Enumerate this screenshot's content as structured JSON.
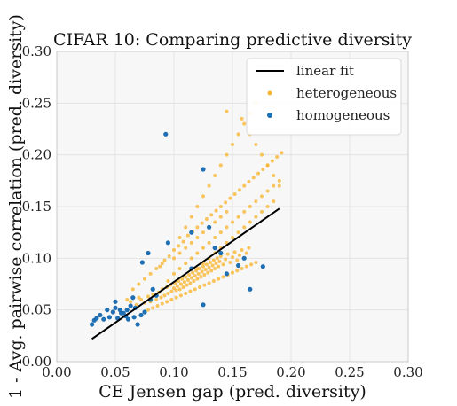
{
  "chart_data": {
    "type": "scatter",
    "title": "CIFAR 10: Comparing predictive diversity",
    "xlabel": "CE Jensen gap (pred. diversity)",
    "ylabel": "1 - Avg. pairwise correlation (pred. diversity)",
    "xlim": [
      0.0,
      0.3
    ],
    "ylim": [
      0.0,
      0.3
    ],
    "xticks": [
      0.0,
      0.05,
      0.1,
      0.15,
      0.2,
      0.25,
      0.3
    ],
    "yticks": [
      0.0,
      0.05,
      0.1,
      0.15,
      0.2,
      0.25,
      0.3
    ],
    "xtick_labels": [
      "0.00",
      "0.05",
      "0.10",
      "0.15",
      "0.20",
      "0.25",
      "0.30"
    ],
    "ytick_labels": [
      "0.00",
      "0.05",
      "0.10",
      "0.15",
      "0.20",
      "0.25",
      "0.30"
    ],
    "grid": true,
    "legend_position": "top-right",
    "legend": [
      "linear fit",
      "heterogeneous",
      "homogeneous"
    ],
    "colors": {
      "background": "#f7f7f7",
      "grid": "#e4e4e4",
      "linear_fit": "#000000",
      "heterogeneous": "#f7b733",
      "homogeneous": "#1f6fb2"
    },
    "linear_fit": {
      "name": "linear fit",
      "x": [
        0.03,
        0.19
      ],
      "y": [
        0.022,
        0.148
      ]
    },
    "heterogeneous": {
      "name": "heterogeneous",
      "points": [
        [
          0.063,
          0.058
        ],
        [
          0.068,
          0.055
        ],
        [
          0.07,
          0.062
        ],
        [
          0.072,
          0.06
        ],
        [
          0.075,
          0.057
        ],
        [
          0.078,
          0.063
        ],
        [
          0.08,
          0.058
        ],
        [
          0.082,
          0.065
        ],
        [
          0.085,
          0.06
        ],
        [
          0.087,
          0.067
        ],
        [
          0.089,
          0.062
        ],
        [
          0.09,
          0.07
        ],
        [
          0.092,
          0.064
        ],
        [
          0.094,
          0.072
        ],
        [
          0.095,
          0.066
        ],
        [
          0.097,
          0.074
        ],
        [
          0.098,
          0.068
        ],
        [
          0.1,
          0.071
        ],
        [
          0.101,
          0.076
        ],
        [
          0.102,
          0.069
        ],
        [
          0.103,
          0.073
        ],
        [
          0.104,
          0.078
        ],
        [
          0.105,
          0.07
        ],
        [
          0.106,
          0.075
        ],
        [
          0.107,
          0.08
        ],
        [
          0.108,
          0.072
        ],
        [
          0.109,
          0.077
        ],
        [
          0.11,
          0.082
        ],
        [
          0.111,
          0.074
        ],
        [
          0.112,
          0.079
        ],
        [
          0.113,
          0.084
        ],
        [
          0.114,
          0.076
        ],
        [
          0.115,
          0.081
        ],
        [
          0.116,
          0.086
        ],
        [
          0.117,
          0.078
        ],
        [
          0.118,
          0.083
        ],
        [
          0.119,
          0.088
        ],
        [
          0.12,
          0.08
        ],
        [
          0.121,
          0.085
        ],
        [
          0.122,
          0.09
        ],
        [
          0.123,
          0.082
        ],
        [
          0.124,
          0.087
        ],
        [
          0.125,
          0.092
        ],
        [
          0.126,
          0.084
        ],
        [
          0.127,
          0.089
        ],
        [
          0.128,
          0.094
        ],
        [
          0.129,
          0.086
        ],
        [
          0.13,
          0.091
        ],
        [
          0.131,
          0.096
        ],
        [
          0.132,
          0.088
        ],
        [
          0.133,
          0.093
        ],
        [
          0.134,
          0.098
        ],
        [
          0.135,
          0.09
        ],
        [
          0.136,
          0.095
        ],
        [
          0.137,
          0.1
        ],
        [
          0.138,
          0.092
        ],
        [
          0.139,
          0.097
        ],
        [
          0.14,
          0.102
        ],
        [
          0.142,
          0.094
        ],
        [
          0.144,
          0.099
        ],
        [
          0.146,
          0.104
        ],
        [
          0.148,
          0.096
        ],
        [
          0.15,
          0.101
        ],
        [
          0.152,
          0.106
        ],
        [
          0.154,
          0.098
        ],
        [
          0.156,
          0.103
        ],
        [
          0.158,
          0.108
        ],
        [
          0.16,
          0.1
        ],
        [
          0.162,
          0.105
        ],
        [
          0.164,
          0.11
        ],
        [
          0.095,
          0.078
        ],
        [
          0.1,
          0.085
        ],
        [
          0.105,
          0.09
        ],
        [
          0.11,
          0.095
        ],
        [
          0.115,
          0.1
        ],
        [
          0.12,
          0.105
        ],
        [
          0.125,
          0.11
        ],
        [
          0.13,
          0.115
        ],
        [
          0.135,
          0.12
        ],
        [
          0.14,
          0.125
        ],
        [
          0.145,
          0.13
        ],
        [
          0.15,
          0.135
        ],
        [
          0.155,
          0.14
        ],
        [
          0.16,
          0.145
        ],
        [
          0.165,
          0.15
        ],
        [
          0.17,
          0.155
        ],
        [
          0.175,
          0.16
        ],
        [
          0.18,
          0.165
        ],
        [
          0.185,
          0.17
        ],
        [
          0.19,
          0.175
        ],
        [
          0.1,
          0.1
        ],
        [
          0.105,
          0.105
        ],
        [
          0.11,
          0.11
        ],
        [
          0.115,
          0.115
        ],
        [
          0.12,
          0.12
        ],
        [
          0.125,
          0.125
        ],
        [
          0.13,
          0.13
        ],
        [
          0.135,
          0.135
        ],
        [
          0.14,
          0.14
        ],
        [
          0.145,
          0.145
        ],
        [
          0.088,
          0.092
        ],
        [
          0.092,
          0.098
        ],
        [
          0.096,
          0.102
        ],
        [
          0.1,
          0.108
        ],
        [
          0.104,
          0.112
        ],
        [
          0.108,
          0.116
        ],
        [
          0.112,
          0.122
        ],
        [
          0.116,
          0.126
        ],
        [
          0.12,
          0.13
        ],
        [
          0.124,
          0.134
        ],
        [
          0.128,
          0.138
        ],
        [
          0.132,
          0.142
        ],
        [
          0.136,
          0.146
        ],
        [
          0.14,
          0.15
        ],
        [
          0.144,
          0.154
        ],
        [
          0.148,
          0.158
        ],
        [
          0.152,
          0.162
        ],
        [
          0.156,
          0.166
        ],
        [
          0.16,
          0.17
        ],
        [
          0.164,
          0.174
        ],
        [
          0.168,
          0.178
        ],
        [
          0.172,
          0.182
        ],
        [
          0.176,
          0.186
        ],
        [
          0.18,
          0.19
        ],
        [
          0.184,
          0.194
        ],
        [
          0.188,
          0.198
        ],
        [
          0.192,
          0.202
        ],
        [
          0.078,
          0.05
        ],
        [
          0.082,
          0.052
        ],
        [
          0.086,
          0.054
        ],
        [
          0.09,
          0.056
        ],
        [
          0.094,
          0.058
        ],
        [
          0.098,
          0.06
        ],
        [
          0.102,
          0.062
        ],
        [
          0.106,
          0.064
        ],
        [
          0.11,
          0.066
        ],
        [
          0.114,
          0.068
        ],
        [
          0.118,
          0.07
        ],
        [
          0.122,
          0.072
        ],
        [
          0.126,
          0.074
        ],
        [
          0.13,
          0.076
        ],
        [
          0.134,
          0.078
        ],
        [
          0.138,
          0.08
        ],
        [
          0.142,
          0.082
        ],
        [
          0.146,
          0.084
        ],
        [
          0.15,
          0.086
        ],
        [
          0.154,
          0.088
        ],
        [
          0.158,
          0.09
        ],
        [
          0.162,
          0.092
        ],
        [
          0.166,
          0.094
        ],
        [
          0.17,
          0.096
        ],
        [
          0.105,
          0.12
        ],
        [
          0.11,
          0.13
        ],
        [
          0.115,
          0.14
        ],
        [
          0.12,
          0.15
        ],
        [
          0.125,
          0.16
        ],
        [
          0.13,
          0.17
        ],
        [
          0.135,
          0.18
        ],
        [
          0.14,
          0.19
        ],
        [
          0.145,
          0.2
        ],
        [
          0.15,
          0.21
        ],
        [
          0.155,
          0.22
        ],
        [
          0.16,
          0.23
        ],
        [
          0.165,
          0.24
        ],
        [
          0.17,
          0.25
        ],
        [
          0.145,
          0.242
        ],
        [
          0.158,
          0.235
        ],
        [
          0.165,
          0.22
        ],
        [
          0.17,
          0.21
        ],
        [
          0.175,
          0.2
        ],
        [
          0.18,
          0.19
        ],
        [
          0.185,
          0.18
        ],
        [
          0.19,
          0.17
        ],
        [
          0.06,
          0.06
        ],
        [
          0.065,
          0.07
        ],
        [
          0.07,
          0.075
        ],
        [
          0.075,
          0.08
        ],
        [
          0.08,
          0.085
        ],
        [
          0.085,
          0.09
        ],
        [
          0.09,
          0.095
        ],
        [
          0.12,
          0.09
        ],
        [
          0.125,
          0.095
        ],
        [
          0.13,
          0.1
        ],
        [
          0.135,
          0.105
        ],
        [
          0.14,
          0.11
        ],
        [
          0.145,
          0.115
        ],
        [
          0.15,
          0.12
        ],
        [
          0.155,
          0.125
        ],
        [
          0.16,
          0.13
        ],
        [
          0.165,
          0.135
        ],
        [
          0.17,
          0.14
        ],
        [
          0.175,
          0.145
        ],
        [
          0.18,
          0.15
        ],
        [
          0.185,
          0.155
        ]
      ]
    },
    "homogeneous": {
      "name": "homogeneous",
      "points": [
        [
          0.03,
          0.036
        ],
        [
          0.032,
          0.04
        ],
        [
          0.034,
          0.042
        ],
        [
          0.037,
          0.045
        ],
        [
          0.04,
          0.041
        ],
        [
          0.043,
          0.05
        ],
        [
          0.045,
          0.043
        ],
        [
          0.048,
          0.048
        ],
        [
          0.05,
          0.052
        ],
        [
          0.052,
          0.042
        ],
        [
          0.054,
          0.05
        ],
        [
          0.057,
          0.047
        ],
        [
          0.059,
          0.044
        ],
        [
          0.061,
          0.041
        ],
        [
          0.063,
          0.054
        ],
        [
          0.065,
          0.062
        ],
        [
          0.067,
          0.052
        ],
        [
          0.069,
          0.036
        ],
        [
          0.072,
          0.045
        ],
        [
          0.075,
          0.048
        ],
        [
          0.085,
          0.064
        ],
        [
          0.08,
          0.06
        ],
        [
          0.082,
          0.07
        ],
        [
          0.093,
          0.22
        ],
        [
          0.073,
          0.096
        ],
        [
          0.078,
          0.105
        ],
        [
          0.095,
          0.115
        ],
        [
          0.115,
          0.125
        ],
        [
          0.125,
          0.186
        ],
        [
          0.13,
          0.13
        ],
        [
          0.135,
          0.11
        ],
        [
          0.14,
          0.105
        ],
        [
          0.145,
          0.085
        ],
        [
          0.155,
          0.093
        ],
        [
          0.16,
          0.1
        ],
        [
          0.165,
          0.07
        ],
        [
          0.176,
          0.092
        ],
        [
          0.125,
          0.055
        ],
        [
          0.115,
          0.09
        ],
        [
          0.05,
          0.058
        ],
        [
          0.055,
          0.047
        ],
        [
          0.06,
          0.05
        ],
        [
          0.066,
          0.043
        ]
      ]
    }
  }
}
